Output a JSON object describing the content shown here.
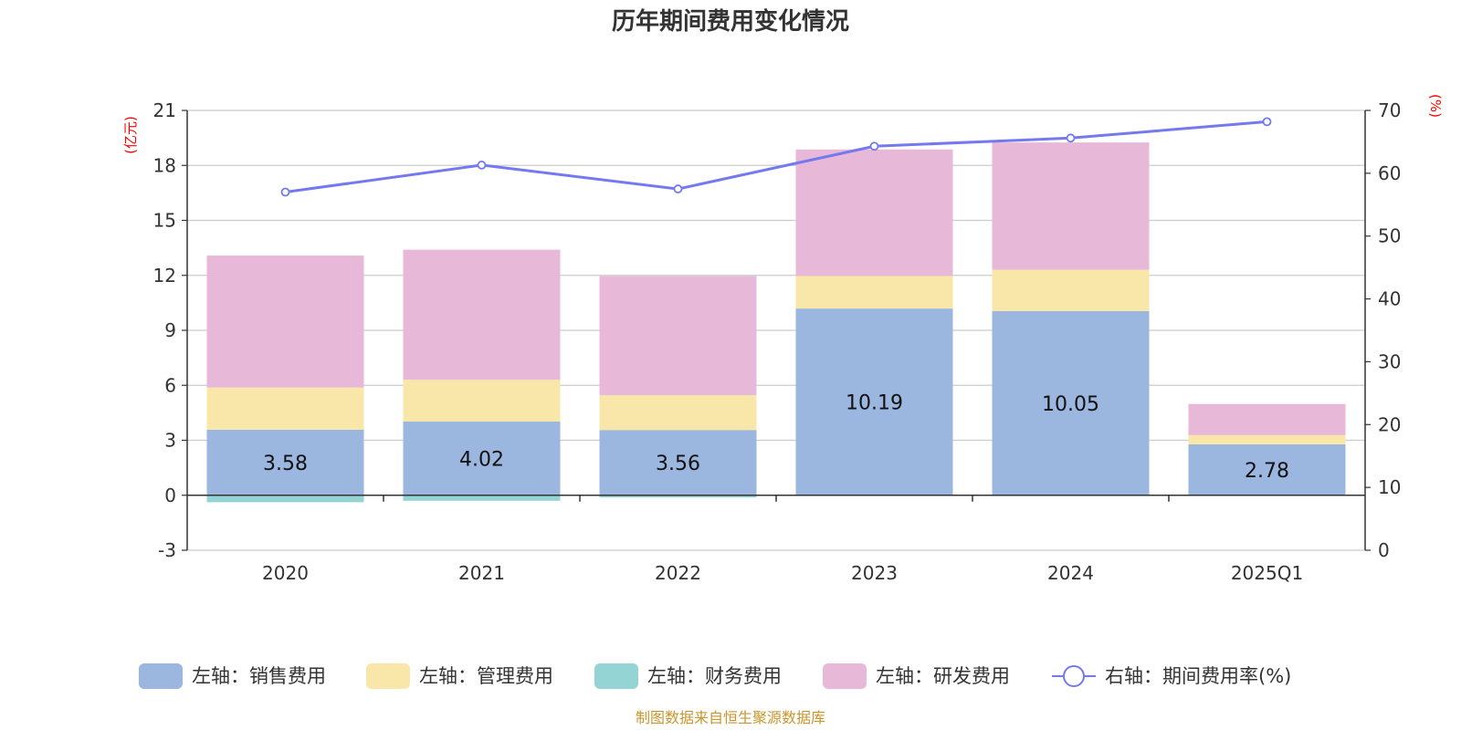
{
  "chart_data": {
    "type": "bar",
    "title": "历年期间费用变化情况",
    "categories": [
      "2020",
      "2021",
      "2022",
      "2023",
      "2024",
      "2025Q1"
    ],
    "left_axis": {
      "unit": "(亿元)",
      "ylim": [
        -3,
        21
      ],
      "ticks": [
        -3,
        0,
        3,
        6,
        9,
        12,
        15,
        18,
        21
      ]
    },
    "right_axis": {
      "unit": "(%)",
      "ylim": [
        0,
        70
      ],
      "ticks": [
        0,
        10,
        20,
        30,
        40,
        50,
        60,
        70
      ]
    },
    "series": [
      {
        "name": "左轴：销售费用",
        "axis": "left",
        "kind": "bar",
        "color": "#9bb7e0",
        "values": [
          3.58,
          4.02,
          3.56,
          10.19,
          10.05,
          2.78
        ],
        "labels": [
          "3.58",
          "4.02",
          "3.56",
          "10.19",
          "10.05",
          "2.78"
        ]
      },
      {
        "name": "左轴：管理费用",
        "axis": "left",
        "kind": "bar",
        "color": "#f8e7a8",
        "values": [
          2.3,
          2.28,
          1.9,
          1.78,
          2.25,
          0.5
        ]
      },
      {
        "name": "左轴：财务费用",
        "axis": "left",
        "kind": "bar",
        "color": "#94d4d4",
        "values": [
          -0.38,
          -0.3,
          -0.12,
          -0.03,
          -0.04,
          -0.02
        ]
      },
      {
        "name": "左轴：研发费用",
        "axis": "left",
        "kind": "bar",
        "color": "#e8b8d8",
        "values": [
          7.2,
          7.1,
          6.5,
          6.9,
          6.95,
          1.7
        ]
      },
      {
        "name": "右轴：期间费用率(%)",
        "axis": "right",
        "kind": "line",
        "color": "#7479ee",
        "values": [
          57.0,
          61.3,
          57.5,
          64.3,
          65.6,
          68.2
        ]
      }
    ],
    "legend_position": "bottom",
    "grid": true
  },
  "source_note": "制图数据来自恒生聚源数据库"
}
